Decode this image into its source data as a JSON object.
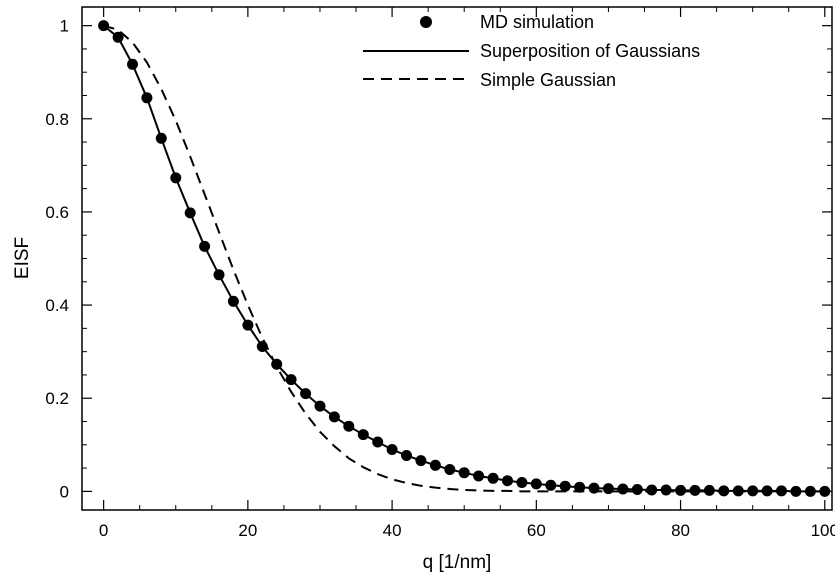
{
  "chart_data": {
    "type": "line",
    "title": "",
    "xlabel": "q [1/nm]",
    "ylabel": "EISF",
    "xlim": [
      -3,
      101
    ],
    "ylim": [
      -0.04,
      1.04
    ],
    "x_ticks": [
      0,
      20,
      40,
      60,
      80,
      100
    ],
    "x_tick_labels": [
      "0",
      "20",
      "40",
      "60",
      "80",
      "100"
    ],
    "y_ticks": [
      0,
      0.2,
      0.4,
      0.6,
      0.8,
      1
    ],
    "y_tick_labels": [
      "0",
      "0.2",
      "0.4",
      "0.6",
      "0.8",
      "1"
    ],
    "x_minor_step": 5,
    "y_minor_step": 0.05,
    "grid": false,
    "legend_position": "top-right",
    "series": [
      {
        "name": "MD simulation",
        "style": "markers",
        "marker": "filled-circle",
        "color": "#000000",
        "x": [
          0,
          2,
          4,
          6,
          8,
          10,
          12,
          14,
          16,
          18,
          20,
          22,
          24,
          26,
          28,
          30,
          32,
          34,
          36,
          38,
          40,
          42,
          44,
          46,
          48,
          50,
          52,
          54,
          56,
          58,
          60,
          62,
          64,
          66,
          68,
          70,
          72,
          74,
          76,
          78,
          80,
          82,
          84,
          86,
          88,
          90,
          92,
          94,
          96,
          98,
          100
        ],
        "y": [
          1.0,
          0.975,
          0.917,
          0.845,
          0.758,
          0.673,
          0.598,
          0.526,
          0.465,
          0.408,
          0.357,
          0.311,
          0.273,
          0.24,
          0.21,
          0.183,
          0.16,
          0.14,
          0.122,
          0.106,
          0.09,
          0.077,
          0.066,
          0.056,
          0.047,
          0.04,
          0.033,
          0.028,
          0.023,
          0.019,
          0.016,
          0.013,
          0.011,
          0.009,
          0.007,
          0.006,
          0.005,
          0.004,
          0.003,
          0.003,
          0.002,
          0.002,
          0.002,
          0.001,
          0.001,
          0.001,
          0.001,
          0.001,
          0.0,
          0.0,
          0.0
        ]
      },
      {
        "name": "Superposition of Gaussians",
        "style": "solid",
        "color": "#000000",
        "x": [
          0,
          2,
          4,
          6,
          8,
          10,
          12,
          14,
          16,
          18,
          20,
          22,
          24,
          26,
          28,
          30,
          32,
          34,
          36,
          38,
          40,
          42,
          44,
          46,
          48,
          50,
          52,
          54,
          56,
          58,
          60,
          62,
          64,
          66,
          68,
          70,
          72,
          74,
          76,
          78,
          80,
          82,
          84,
          86,
          88,
          90,
          92,
          94,
          96,
          98,
          100
        ],
        "y": [
          1.0,
          0.975,
          0.917,
          0.845,
          0.758,
          0.673,
          0.598,
          0.526,
          0.465,
          0.408,
          0.357,
          0.311,
          0.273,
          0.24,
          0.21,
          0.183,
          0.16,
          0.14,
          0.122,
          0.106,
          0.09,
          0.077,
          0.066,
          0.056,
          0.047,
          0.04,
          0.033,
          0.028,
          0.023,
          0.019,
          0.016,
          0.013,
          0.011,
          0.009,
          0.007,
          0.006,
          0.005,
          0.004,
          0.003,
          0.003,
          0.002,
          0.002,
          0.002,
          0.001,
          0.001,
          0.001,
          0.001,
          0.001,
          0.0,
          0.0,
          0.0
        ]
      },
      {
        "name": "Simple Gaussian",
        "style": "dashed",
        "color": "#000000",
        "x": [
          0,
          2,
          4,
          6,
          8,
          10,
          12,
          14,
          16,
          18,
          20,
          22,
          24,
          26,
          28,
          30,
          32,
          34,
          36,
          38,
          40,
          42,
          44,
          46,
          48,
          50,
          52,
          54,
          56,
          58,
          60,
          62,
          64,
          66,
          68,
          70,
          75,
          80,
          85,
          90,
          95,
          100
        ],
        "y": [
          1.0,
          0.991,
          0.964,
          0.921,
          0.864,
          0.796,
          0.719,
          0.638,
          0.557,
          0.476,
          0.4,
          0.33,
          0.268,
          0.214,
          0.167,
          0.128,
          0.097,
          0.071,
          0.052,
          0.037,
          0.026,
          0.018,
          0.012,
          0.008,
          0.005,
          0.003,
          0.002,
          0.001,
          0.001,
          0.0,
          0.0,
          0.0,
          0.0,
          0.0,
          0.0,
          0.0,
          0.0,
          0.0,
          0.0,
          0.0,
          0.0,
          0.0
        ]
      }
    ]
  }
}
